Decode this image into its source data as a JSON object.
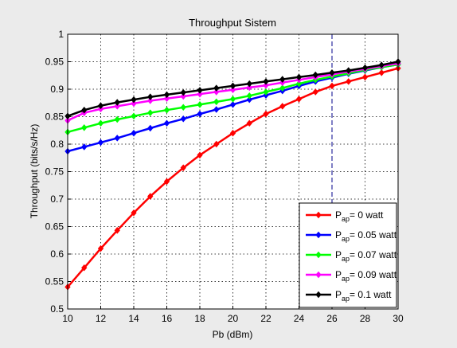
{
  "window": {
    "background": "#ebebeb"
  },
  "chart_data": {
    "type": "line",
    "title": "Throughput Sistem",
    "xlabel": "Pb (dBm)",
    "ylabel": "Throughput (bits/s/Hz)",
    "xlim": [
      10,
      30
    ],
    "ylim": [
      0.5,
      1
    ],
    "xticks": [
      10,
      12,
      14,
      16,
      18,
      20,
      22,
      24,
      26,
      28,
      30
    ],
    "yticks": [
      0.5,
      0.55,
      0.6,
      0.65,
      0.7,
      0.75,
      0.8,
      0.85,
      0.9,
      0.95,
      1
    ],
    "ytick_labels": [
      "0.5",
      "0.55",
      "0.6",
      "0.65",
      "0.7",
      "0.75",
      "0.8",
      "0.85",
      "0.9",
      "0.95",
      "1"
    ],
    "grid": true,
    "grid_style": "dotted",
    "legend_position": "bottom-right",
    "marker": "diamond",
    "x": [
      10,
      11,
      12,
      13,
      14,
      15,
      16,
      17,
      18,
      19,
      20,
      21,
      22,
      23,
      24,
      25,
      26,
      27,
      28,
      29,
      30
    ],
    "series": [
      {
        "legend": {
          "prefix": "P",
          "sub": "ap",
          "suffix": "= 0 watt"
        },
        "color": "#ff0000",
        "values": [
          0.54,
          0.575,
          0.61,
          0.643,
          0.675,
          0.705,
          0.732,
          0.757,
          0.78,
          0.8,
          0.82,
          0.838,
          0.855,
          0.869,
          0.882,
          0.895,
          0.906,
          0.914,
          0.922,
          0.93,
          0.938
        ]
      },
      {
        "legend": {
          "prefix": "P",
          "sub": "ap",
          "suffix": "= 0.05 watt"
        },
        "color": "#0000ff",
        "values": [
          0.787,
          0.795,
          0.803,
          0.811,
          0.82,
          0.829,
          0.838,
          0.846,
          0.855,
          0.863,
          0.872,
          0.881,
          0.889,
          0.897,
          0.906,
          0.914,
          0.921,
          0.928,
          0.934,
          0.94,
          0.945
        ]
      },
      {
        "legend": {
          "prefix": "P",
          "sub": "ap",
          "suffix": "= 0.07 watt"
        },
        "color": "#00ff00",
        "values": [
          0.822,
          0.83,
          0.838,
          0.845,
          0.851,
          0.857,
          0.862,
          0.867,
          0.872,
          0.877,
          0.882,
          0.888,
          0.895,
          0.902,
          0.91,
          0.917,
          0.923,
          0.929,
          0.935,
          0.94,
          0.945
        ]
      },
      {
        "legend": {
          "prefix": "P",
          "sub": "ap",
          "suffix": "= 0.09 watt"
        },
        "color": "#ff00ff",
        "values": [
          0.843,
          0.857,
          0.864,
          0.869,
          0.874,
          0.879,
          0.883,
          0.887,
          0.891,
          0.895,
          0.899,
          0.903,
          0.907,
          0.912,
          0.917,
          0.922,
          0.927,
          0.932,
          0.937,
          0.942,
          0.947
        ]
      },
      {
        "legend": {
          "prefix": "P",
          "sub": "ap",
          "suffix": "= 0.1 watt"
        },
        "color": "#000000",
        "values": [
          0.851,
          0.862,
          0.87,
          0.876,
          0.881,
          0.886,
          0.89,
          0.894,
          0.898,
          0.902,
          0.906,
          0.91,
          0.914,
          0.918,
          0.922,
          0.926,
          0.93,
          0.934,
          0.939,
          0.944,
          0.95
        ]
      }
    ]
  }
}
